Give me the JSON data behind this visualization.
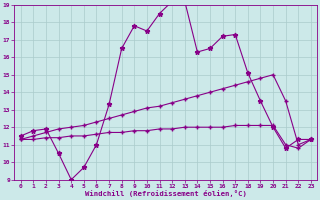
{
  "xlabel": "Windchill (Refroidissement éolien,°C)",
  "background_color": "#cce9e9",
  "line_color": "#880088",
  "xlim": [
    -0.5,
    23.5
  ],
  "ylim": [
    9,
    19
  ],
  "xticks": [
    0,
    1,
    2,
    3,
    4,
    5,
    6,
    7,
    8,
    9,
    10,
    11,
    12,
    13,
    14,
    15,
    16,
    17,
    18,
    19,
    20,
    21,
    22,
    23
  ],
  "yticks": [
    9,
    10,
    11,
    12,
    13,
    14,
    15,
    16,
    17,
    18,
    19
  ],
  "grid_color": "#aacccc",
  "s1_x": [
    0,
    1,
    2,
    3,
    4,
    5,
    6,
    7,
    8,
    9,
    10,
    11,
    12,
    13,
    14,
    15,
    16,
    17,
    18,
    19,
    20,
    21,
    22,
    23
  ],
  "s1_y": [
    11.5,
    11.8,
    11.9,
    10.5,
    9.0,
    9.7,
    11.0,
    13.3,
    16.5,
    17.8,
    17.5,
    18.5,
    19.2,
    19.2,
    16.3,
    16.5,
    17.2,
    17.3,
    15.1,
    13.5,
    12.0,
    10.8,
    11.3,
    11.3
  ],
  "s2_x": [
    0,
    1,
    2,
    3,
    4,
    5,
    6,
    7,
    8,
    9,
    10,
    11,
    12,
    13,
    14,
    15,
    16,
    17,
    18,
    19,
    20,
    21,
    22,
    23
  ],
  "s2_y": [
    11.3,
    11.5,
    11.7,
    11.9,
    12.0,
    12.1,
    12.3,
    12.5,
    12.7,
    12.9,
    13.1,
    13.2,
    13.4,
    13.6,
    13.8,
    14.0,
    14.2,
    14.4,
    14.6,
    14.8,
    15.0,
    13.5,
    11.0,
    11.3
  ],
  "s3_x": [
    0,
    1,
    2,
    3,
    4,
    5,
    6,
    7,
    8,
    9,
    10,
    11,
    12,
    13,
    14,
    15,
    16,
    17,
    18,
    19,
    20,
    21,
    22,
    23
  ],
  "s3_y": [
    11.3,
    11.3,
    11.4,
    11.4,
    11.5,
    11.5,
    11.6,
    11.7,
    11.7,
    11.8,
    11.8,
    11.9,
    11.9,
    12.0,
    12.0,
    12.0,
    12.0,
    12.1,
    12.1,
    12.1,
    12.1,
    11.0,
    10.8,
    11.3
  ]
}
